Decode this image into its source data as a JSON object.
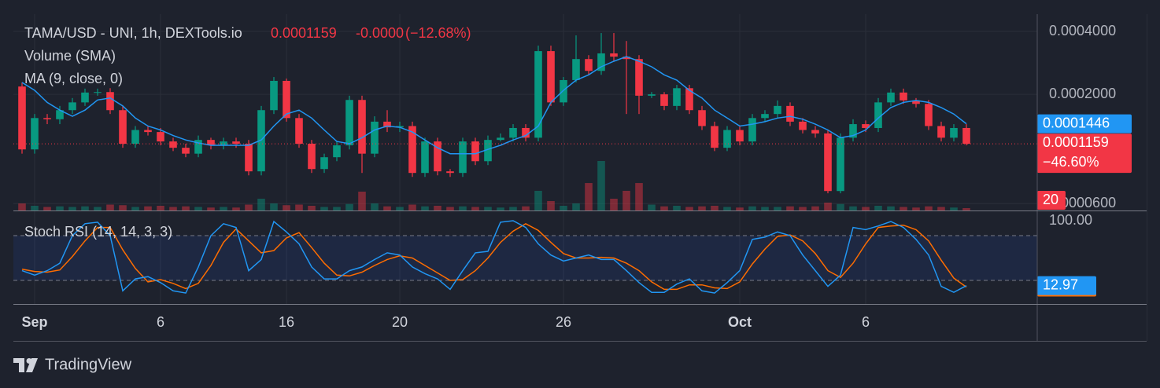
{
  "chart_data": [
    {
      "type": "candlestick",
      "title": "TAMA/USD - UNI, 1h, DEXTools.io",
      "price": "0.0001159",
      "change": "-0.0000",
      "change_pct": "(−12.68%)",
      "price_badge": "0.0001159",
      "change_badge": "−46.60%",
      "log_scale": true,
      "grid": true,
      "up_color": "#089981",
      "down_color": "#f23645",
      "ylim": [
        5.56e-05,
        0.000484
      ],
      "yticks": [
        {
          "value": 0.0004,
          "label": "0.0004000"
        },
        {
          "value": 0.0002,
          "label": "0.0002000"
        },
        {
          "value": 6e-05,
          "label": "0.0000600"
        }
      ],
      "vlim": [
        0,
        440
      ],
      "categories": [
        null,
        "Sep",
        null,
        null,
        null,
        null,
        null,
        null,
        null,
        null,
        null,
        "6",
        null,
        null,
        null,
        null,
        null,
        null,
        null,
        null,
        null,
        "16",
        null,
        null,
        null,
        null,
        null,
        null,
        null,
        null,
        "20",
        null,
        null,
        null,
        null,
        null,
        null,
        null,
        null,
        null,
        null,
        null,
        null,
        "26",
        null,
        null,
        null,
        null,
        null,
        null,
        null,
        null,
        null,
        null,
        null,
        null,
        null,
        "Oct",
        null,
        null,
        null,
        null,
        null,
        null,
        null,
        null,
        null,
        "6",
        null,
        null,
        null,
        null,
        null,
        null,
        null,
        null
      ],
      "ohlc": [
        [
          0.000218,
          0.000228,
          0.000104,
          0.000109
        ],
        [
          0.000109,
          0.000161,
          0.000104,
          0.000154
        ],
        [
          0.000154,
          0.000161,
          0.000144,
          0.000152
        ],
        [
          0.000152,
          0.000176,
          0.000144,
          0.000168
        ],
        [
          0.000168,
          0.000192,
          0.000161,
          0.000183
        ],
        [
          0.000183,
          0.000213,
          0.000176,
          0.000204
        ],
        [
          0.000204,
          0.000213,
          0.000197,
          0.000205
        ],
        [
          0.000205,
          0.000214,
          0.000161,
          0.000168
        ],
        [
          0.000168,
          0.000176,
          0.000111,
          0.000116
        ],
        [
          0.000116,
          0.000141,
          0.000111,
          0.000135
        ],
        [
          0.000135,
          0.000141,
          0.000127,
          0.000132
        ],
        [
          0.000132,
          0.000138,
          0.000114,
          0.000119
        ],
        [
          0.000119,
          0.000124,
          0.000107,
          0.000111
        ],
        [
          0.000111,
          0.000116,
          0.0001,
          0.000104
        ],
        [
          0.000104,
          0.000127,
          0.0001,
          0.000121
        ],
        [
          0.000121,
          0.000124,
          0.000109,
          0.000114
        ],
        [
          0.000114,
          0.000124,
          0.000109,
          0.000119
        ],
        [
          0.000119,
          0.000124,
          0.000111,
          0.000116
        ],
        [
          0.000116,
          0.000121,
          8.19e-05,
          8.56e-05
        ],
        [
          8.56e-05,
          0.000176,
          8.19e-05,
          0.000168
        ],
        [
          0.000168,
          0.000242,
          0.000161,
          0.000232
        ],
        [
          0.000232,
          0.000238,
          0.000148,
          0.000154
        ],
        [
          0.000154,
          0.000161,
          0.000111,
          0.000116
        ],
        [
          0.000116,
          0.000121,
          8.41e-05,
          8.78e-05
        ],
        [
          8.78e-05,
          0.000104,
          8.41e-05,
          0.0001
        ],
        [
          0.0001,
          0.000119,
          9.57e-05,
          0.000114
        ],
        [
          0.000114,
          0.000197,
          0.000109,
          0.000188
        ],
        [
          0.000188,
          0.000197,
          8.41e-05,
          0.000104
        ],
        [
          0.000104,
          0.000157,
          0.0001,
          0.000148
        ],
        [
          0.000148,
          0.000168,
          0.000132,
          0.000139
        ],
        [
          0.000139,
          0.000148,
          0.000132,
          0.000141
        ],
        [
          0.000141,
          0.000148,
          8.05e-05,
          8.41e-05
        ],
        [
          8.41e-05,
          0.000124,
          8.05e-05,
          0.000119
        ],
        [
          0.000119,
          0.000124,
          8.19e-05,
          8.56e-05
        ],
        [
          8.56e-05,
          8.78e-05,
          8.05e-05,
          8.41e-05
        ],
        [
          8.41e-05,
          0.000124,
          8.05e-05,
          0.000119
        ],
        [
          0.000119,
          0.000124,
          9.17e-05,
          9.57e-05
        ],
        [
          9.57e-05,
          0.000127,
          9.17e-05,
          0.000121
        ],
        [
          0.000121,
          0.00013,
          0.000119,
          0.000124
        ],
        [
          0.000124,
          0.000144,
          0.000119,
          0.000138
        ],
        [
          0.000138,
          0.000144,
          0.000119,
          0.000124
        ],
        [
          0.000124,
          0.000342,
          0.000119,
          0.000322
        ],
        [
          0.000322,
          0.000342,
          0.000176,
          0.000183
        ],
        [
          0.000183,
          0.000242,
          0.000176,
          0.000234
        ],
        [
          0.000234,
          0.000383,
          0.000228,
          0.000295
        ],
        [
          0.000295,
          0.000308,
          0.000248,
          0.000259
        ],
        [
          0.000259,
          0.000393,
          0.000248,
          0.000314
        ],
        [
          0.000314,
          0.000393,
          0.000288,
          0.000303
        ],
        [
          0.000303,
          0.00036,
          0.000161,
          0.000295
        ],
        [
          0.000295,
          0.000308,
          0.000161,
          0.000197
        ],
        [
          0.000197,
          0.000205,
          0.000192,
          0.0002
        ],
        [
          0.0002,
          0.000205,
          0.000168,
          0.000176
        ],
        [
          0.000176,
          0.000222,
          0.000168,
          0.000214
        ],
        [
          0.000214,
          0.000222,
          0.000161,
          0.000168
        ],
        [
          0.000168,
          0.000176,
          0.000135,
          0.000141
        ],
        [
          0.000141,
          0.000148,
          0.000107,
          0.000111
        ],
        [
          0.000111,
          0.000141,
          0.000107,
          0.000135
        ],
        [
          0.000135,
          0.000141,
          0.000114,
          0.000119
        ],
        [
          0.000119,
          0.000161,
          0.000114,
          0.000154
        ],
        [
          0.000154,
          0.000168,
          0.000148,
          0.000161
        ],
        [
          0.000161,
          0.000187,
          0.000154,
          0.000176
        ],
        [
          0.000176,
          0.000183,
          0.000141,
          0.000148
        ],
        [
          0.000148,
          0.000154,
          0.00013,
          0.000135
        ],
        [
          0.000135,
          0.000141,
          0.000124,
          0.00013
        ],
        [
          0.00013,
          0.000135,
          6.72e-05,
          6.89e-05
        ],
        [
          6.89e-05,
          0.00013,
          6.72e-05,
          0.000124
        ],
        [
          0.000124,
          0.000152,
          0.000119,
          0.000144
        ],
        [
          0.000144,
          0.00015,
          0.000132,
          0.000138
        ],
        [
          0.000138,
          0.000192,
          0.000132,
          0.000183
        ],
        [
          0.000183,
          0.000213,
          0.000176,
          0.000204
        ],
        [
          0.000204,
          0.000213,
          0.00018,
          0.000187
        ],
        [
          0.000187,
          0.000192,
          0.000173,
          0.00018
        ],
        [
          0.00018,
          0.000188,
          0.000135,
          0.000141
        ],
        [
          0.000141,
          0.000148,
          0.000119,
          0.000124
        ],
        [
          0.000124,
          0.000144,
          0.000119,
          0.000138
        ],
        [
          0.000138,
          0.000144,
          0.000114,
          0.0001159
        ]
      ],
      "volume": {
        "name": "Volume (SMA)",
        "last_label": "20",
        "values": [
          60,
          40,
          30,
          35,
          30,
          35,
          30,
          50,
          45,
          30,
          35,
          40,
          30,
          35,
          30,
          25,
          30,
          25,
          50,
          100,
          60,
          45,
          50,
          40,
          30,
          30,
          55,
          160,
          60,
          35,
          30,
          50,
          35,
          40,
          30,
          35,
          30,
          30,
          25,
          30,
          35,
          167,
          80,
          40,
          60,
          233,
          420,
          100,
          167,
          233,
          50,
          35,
          40,
          30,
          35,
          40,
          30,
          25,
          35,
          30,
          30,
          35,
          30,
          35,
          67,
          55,
          35,
          30,
          40,
          35,
          30,
          25,
          35,
          30,
          25,
          20
        ]
      },
      "ma": {
        "name": "MA (9, close, 0)",
        "color": "#2196f3",
        "last_label": "0.0001446",
        "values": [
          0.000228,
          0.000209,
          0.000183,
          0.000168,
          0.000157,
          0.000168,
          0.000188,
          0.000192,
          0.000176,
          0.000154,
          0.000141,
          0.000135,
          0.000127,
          0.000121,
          0.000117,
          0.000114,
          0.000114,
          0.000114,
          0.000114,
          0.000121,
          0.000141,
          0.000161,
          0.000168,
          0.000154,
          0.000135,
          0.000119,
          0.000116,
          0.000124,
          0.000135,
          0.000141,
          0.000139,
          0.000132,
          0.000121,
          0.000111,
          0.000104,
          0.000104,
          0.000104,
          0.000109,
          0.000114,
          0.000121,
          0.000127,
          0.000141,
          0.000183,
          0.000209,
          0.000234,
          0.000248,
          0.000271,
          0.000288,
          0.000303,
          0.000288,
          0.000271,
          0.000248,
          0.000234,
          0.000209,
          0.000192,
          0.000168,
          0.000154,
          0.000141,
          0.000144,
          0.000148,
          0.000154,
          0.000157,
          0.000152,
          0.000144,
          0.000135,
          0.000124,
          0.000127,
          0.000135,
          0.000154,
          0.000173,
          0.000183,
          0.000187,
          0.000183,
          0.000173,
          0.000161,
          0.0001446
        ]
      }
    },
    {
      "type": "line",
      "title": "Stoch RSI (14, 14, 3, 3)",
      "ylim": [
        -11.6,
        111.6
      ],
      "yticks": [
        {
          "value": 100,
          "label": "100.00"
        }
      ],
      "bands": [
        20,
        80
      ],
      "band_color": "#2962ff",
      "series": [
        {
          "color": "#2196f3",
          "last_label": "12.97",
          "values": [
            33,
            27,
            33,
            43,
            80,
            96,
            98,
            80,
            6,
            22,
            25,
            17,
            6,
            3,
            38,
            80,
            96,
            91,
            33,
            48,
            99,
            85,
            69,
            38,
            22,
            22,
            33,
            38,
            48,
            57,
            54,
            38,
            29,
            22,
            8,
            33,
            57,
            59,
            98,
            100,
            91,
            69,
            54,
            46,
            50,
            54,
            48,
            48,
            33,
            17,
            4,
            4,
            15,
            22,
            6,
            3,
            17,
            33,
            75,
            78,
            85,
            80,
            54,
            33,
            12,
            27,
            91,
            88,
            93,
            99,
            91,
            75,
            54,
            12,
            4,
            12.97
          ]
        },
        {
          "color": "#ff6d00",
          "values": [
            35,
            32,
            31,
            34,
            52,
            73,
            91,
            91,
            61,
            36,
            18,
            21,
            16,
            9,
            16,
            40,
            71,
            89,
            73,
            57,
            60,
            77,
            84,
            64,
            43,
            27,
            26,
            31,
            40,
            48,
            53,
            50,
            40,
            30,
            20,
            21,
            33,
            50,
            71,
            86,
            96,
            87,
            71,
            56,
            50,
            50,
            51,
            50,
            43,
            33,
            18,
            8,
            8,
            14,
            14,
            10,
            9,
            18,
            42,
            62,
            79,
            81,
            73,
            56,
            33,
            24,
            43,
            69,
            91,
            93,
            94,
            88,
            73,
            47,
            23,
            11
          ]
        }
      ]
    }
  ],
  "footer": {
    "brand": "TradingView"
  }
}
